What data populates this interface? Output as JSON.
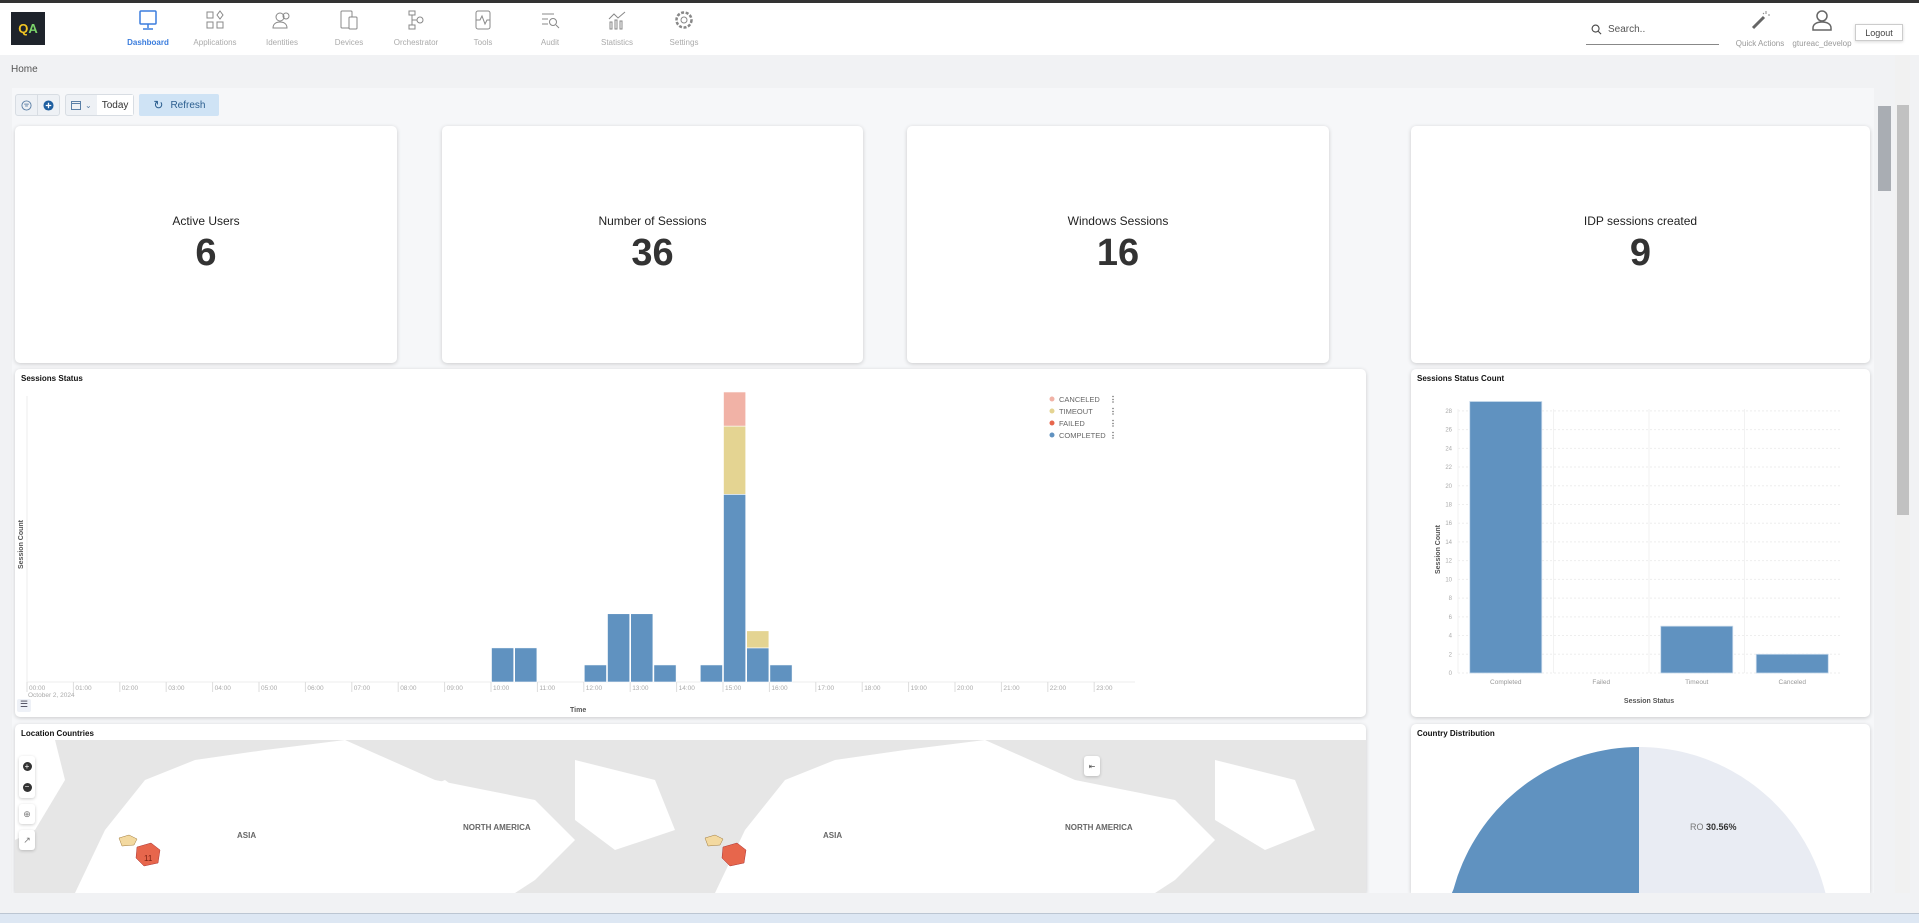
{
  "header": {
    "logo_text": "QA",
    "nav": [
      {
        "label": "Dashboard",
        "icon": "monitor-icon",
        "active": true
      },
      {
        "label": "Applications",
        "icon": "apps-icon"
      },
      {
        "label": "Identities",
        "icon": "users-icon"
      },
      {
        "label": "Devices",
        "icon": "devices-icon"
      },
      {
        "label": "Orchestrator",
        "icon": "flow-icon"
      },
      {
        "label": "Tools",
        "icon": "tools-icon"
      },
      {
        "label": "Audit",
        "icon": "audit-search-icon"
      },
      {
        "label": "Statistics",
        "icon": "statistics-icon"
      },
      {
        "label": "Settings",
        "icon": "gear-icon"
      }
    ],
    "search_placeholder": "Search..",
    "quick_actions_label": "Quick Actions",
    "username": "gtureac_develop",
    "logout_label": "Logout"
  },
  "breadcrumb": "Home",
  "toolbar": {
    "date_range": "Today",
    "refresh_label": "Refresh"
  },
  "stats": [
    {
      "title": "Active Users",
      "value": "6"
    },
    {
      "title": "Number of Sessions",
      "value": "36"
    },
    {
      "title": "Windows Sessions",
      "value": "16"
    },
    {
      "title": "IDP sessions created",
      "value": "9"
    }
  ],
  "chart_data": [
    {
      "type": "bar",
      "stacked": true,
      "title": "Sessions Status",
      "xlabel": "Time",
      "ylabel": "Session Count",
      "x_ticks": [
        "00:00",
        "01:00",
        "02:00",
        "03:00",
        "04:00",
        "05:00",
        "06:00",
        "07:00",
        "08:00",
        "09:00",
        "10:00",
        "11:00",
        "12:00",
        "13:00",
        "14:00",
        "15:00",
        "16:00",
        "17:00",
        "18:00",
        "19:00",
        "20:00",
        "21:00",
        "22:00",
        "23:00"
      ],
      "x_date_label": "October 2, 2024",
      "x": [
        "10:00",
        "10:30",
        "12:00",
        "12:30",
        "13:00",
        "13:30",
        "14:30",
        "15:00",
        "15:30",
        "16:00"
      ],
      "series": [
        {
          "name": "COMPLETED",
          "color": "#6092c0",
          "values": [
            2,
            2,
            1,
            4,
            4,
            1,
            1,
            11,
            2,
            1
          ]
        },
        {
          "name": "FAILED",
          "color": "#e7664c",
          "values": [
            0,
            0,
            0,
            0,
            0,
            0,
            0,
            0,
            0,
            0
          ]
        },
        {
          "name": "TIMEOUT",
          "color": "#e4d492",
          "values": [
            0,
            0,
            0,
            0,
            0,
            0,
            0,
            4,
            1,
            0
          ]
        },
        {
          "name": "CANCELED",
          "color": "#f1b2a6",
          "values": [
            0,
            0,
            0,
            0,
            0,
            0,
            0,
            2,
            0,
            0
          ]
        }
      ],
      "legend_order": [
        "CANCELED",
        "TIMEOUT",
        "FAILED",
        "COMPLETED"
      ],
      "legend": "top-right",
      "ylim": [
        0,
        17
      ]
    },
    {
      "type": "bar",
      "title": "Sessions Status Count",
      "xlabel": "Session Status",
      "ylabel": "Session Count",
      "categories": [
        "Completed",
        "Failed",
        "Timeout",
        "Canceled"
      ],
      "values": [
        29,
        0,
        5,
        2
      ],
      "y_ticks": [
        0,
        2,
        4,
        6,
        8,
        10,
        12,
        14,
        16,
        18,
        20,
        22,
        24,
        26,
        28
      ],
      "ylim": [
        0,
        29
      ],
      "grid": true,
      "color": "#6092c0"
    },
    {
      "type": "pie",
      "title": "Country Distribution",
      "slices": [
        {
          "label": "RO",
          "percent_label": "30.56%",
          "value": 30.56,
          "color": "#e9ecf3"
        },
        {
          "value": 69.44,
          "color": "#6092c0"
        }
      ]
    }
  ],
  "map": {
    "title": "Location Countries",
    "labels": [
      "ASIA",
      "NORTH AMERICA"
    ],
    "marker_count": "11"
  }
}
